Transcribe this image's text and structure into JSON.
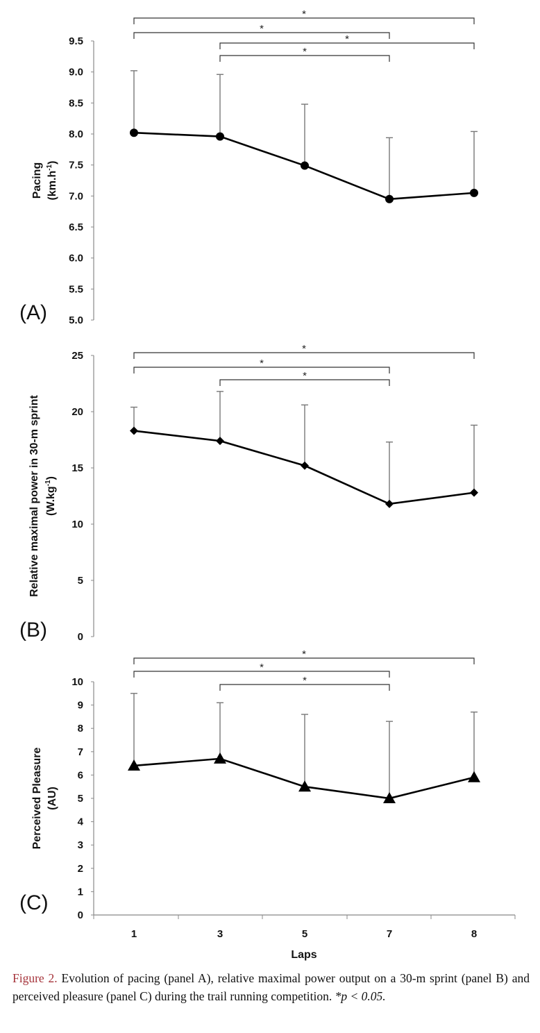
{
  "x_label": "Laps",
  "chart_data": [
    {
      "type": "line",
      "panel_label": "(A)",
      "ylabel": [
        "Pacing",
        "(km.h",
        "-1",
        ")"
      ],
      "categories": [
        "1",
        "3",
        "5",
        "7",
        "8"
      ],
      "values": [
        8.02,
        7.96,
        7.49,
        6.95,
        7.05
      ],
      "error_upper": [
        9.02,
        8.96,
        8.48,
        7.94,
        8.04
      ],
      "ylim": [
        5.0,
        9.5
      ],
      "yticks": [
        "5.0",
        "5.5",
        "6.0",
        "6.5",
        "7.0",
        "7.5",
        "8.0",
        "8.5",
        "9.0",
        "9.5"
      ],
      "marker": "circle",
      "significance": [
        {
          "from": "1",
          "to": "8",
          "label": "*"
        },
        {
          "from": "1",
          "to": "7",
          "label": "*"
        },
        {
          "from": "3",
          "to": "8",
          "label": "*"
        },
        {
          "from": "3",
          "to": "7",
          "label": "*"
        }
      ]
    },
    {
      "type": "line",
      "panel_label": "(B)",
      "ylabel": [
        "Relative maximal power in 30-m sprint",
        "(W.kg",
        "-1",
        ")"
      ],
      "categories": [
        "1",
        "3",
        "5",
        "7",
        "8"
      ],
      "values": [
        18.3,
        17.4,
        15.2,
        11.8,
        12.8
      ],
      "error_upper": [
        20.4,
        21.8,
        20.6,
        17.3,
        18.8
      ],
      "ylim": [
        0,
        25
      ],
      "yticks": [
        "0",
        "5",
        "10",
        "15",
        "20",
        "25"
      ],
      "marker": "diamond",
      "significance": [
        {
          "from": "1",
          "to": "8",
          "label": "*"
        },
        {
          "from": "1",
          "to": "7",
          "label": "*"
        },
        {
          "from": "3",
          "to": "7",
          "label": "*"
        }
      ]
    },
    {
      "type": "line",
      "panel_label": "(C)",
      "ylabel": [
        "Perceived Pleasure",
        "(AU)",
        "",
        ""
      ],
      "categories": [
        "1",
        "3",
        "5",
        "7",
        "8"
      ],
      "values": [
        6.4,
        6.7,
        5.5,
        5.0,
        5.9
      ],
      "error_upper": [
        9.5,
        9.1,
        8.6,
        8.3,
        8.7
      ],
      "ylim": [
        0,
        10
      ],
      "yticks": [
        "0",
        "1",
        "2",
        "3",
        "4",
        "5",
        "6",
        "7",
        "8",
        "9",
        "10"
      ],
      "marker": "triangle",
      "significance": [
        {
          "from": "1",
          "to": "8",
          "label": "*"
        },
        {
          "from": "1",
          "to": "7",
          "label": "*"
        },
        {
          "from": "3",
          "to": "7",
          "label": "*"
        }
      ]
    }
  ],
  "caption": {
    "figure_label": "Figure 2.",
    "text": " Evolution of pacing (panel A), relative maximal power output on a 30-m sprint (panel B) and perceived pleasure (panel C) during the trail running competition. ",
    "note": "*p < 0.05."
  }
}
